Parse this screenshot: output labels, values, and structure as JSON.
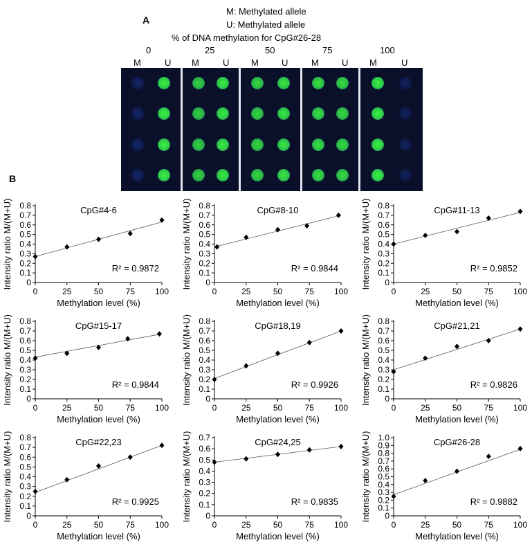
{
  "panel_a": {
    "letter": "A",
    "legend_m": "M: Methylated allele",
    "legend_u": "U: Methylated allele",
    "title": "% of DNA methylation for CpG#26-28",
    "percent_labels": [
      "0",
      "25",
      "50",
      "75",
      "100"
    ],
    "allele_labels": [
      "M",
      "U",
      "M",
      "U",
      "M",
      "U",
      "M",
      "U",
      "M",
      "U"
    ],
    "colors": {
      "background": "#0a0f2a",
      "bright": "#39f03c",
      "dim": "#1a3a9a",
      "separator": "#e6e6f0"
    }
  },
  "panel_b": {
    "letter": "B"
  },
  "chart_data": [
    {
      "type": "scatter",
      "title": "CpG#4-6",
      "xlabel": "Methylation level (%)",
      "ylabel": "Intensity ratio M/(M+U)",
      "x": [
        0,
        25,
        50,
        75,
        100
      ],
      "y": [
        0.27,
        0.37,
        0.45,
        0.51,
        0.65
      ],
      "fit": [
        0.27,
        0.63
      ],
      "r2": "R² = 0.9872",
      "xlim": [
        0,
        100
      ],
      "ylim": [
        0,
        0.8
      ],
      "yticks": [
        "0",
        "0.1",
        "0.2",
        "0.3",
        "0.4",
        "0.5",
        "0.6",
        "0.7",
        "0.8"
      ],
      "xticks": [
        "0",
        "25",
        "50",
        "75",
        "100"
      ]
    },
    {
      "type": "scatter",
      "title": "CpG#8-10",
      "xlabel": "Methylation level (%)",
      "ylabel": "Intensity ratio M/(M+U)",
      "x": [
        2,
        25,
        50,
        73,
        98
      ],
      "y": [
        0.37,
        0.47,
        0.55,
        0.59,
        0.7
      ],
      "fit": [
        0.37,
        0.7
      ],
      "r2": "R² = 0.9844",
      "xlim": [
        0,
        100
      ],
      "ylim": [
        0,
        0.8
      ],
      "yticks": [
        "0",
        "0.1",
        "0.2",
        "0.3",
        "0.4",
        "0.5",
        "0.6",
        "0.7",
        "0.8"
      ],
      "xticks": [
        "0",
        "25",
        "50",
        "75",
        "100"
      ]
    },
    {
      "type": "scatter",
      "title": "CpG#11-13",
      "xlabel": "Methylation level (%)",
      "ylabel": "Intensity ratio M/(M+U)",
      "x": [
        0,
        25,
        50,
        75,
        100
      ],
      "y": [
        0.4,
        0.49,
        0.53,
        0.67,
        0.74
      ],
      "fit": [
        0.4,
        0.73
      ],
      "r2": "R² = 0.9852",
      "xlim": [
        0,
        100
      ],
      "ylim": [
        0,
        0.8
      ],
      "yticks": [
        "0",
        "0.1",
        "0.2",
        "0.3",
        "0.4",
        "0.5",
        "0.6",
        "0.7",
        "0.8"
      ],
      "xticks": [
        "0",
        "25",
        "50",
        "75",
        "100"
      ]
    },
    {
      "type": "scatter",
      "title": "CpG#15-17",
      "xlabel": "Methylation level (%)",
      "ylabel": "Intensity ratio M/(M+U)",
      "x": [
        0,
        25,
        50,
        73,
        98
      ],
      "y": [
        0.42,
        0.47,
        0.53,
        0.62,
        0.67
      ],
      "fit": [
        0.43,
        0.67
      ],
      "r2": "R² = 0.9844",
      "xlim": [
        0,
        100
      ],
      "ylim": [
        0,
        0.8
      ],
      "yticks": [
        "0",
        "0.1",
        "0.2",
        "0.3",
        "0.4",
        "0.5",
        "0.6",
        "0.7",
        "0.8"
      ],
      "xticks": [
        "0",
        "25",
        "50",
        "75",
        "100"
      ]
    },
    {
      "type": "scatter",
      "title": "CpG#18,19",
      "xlabel": "Methylation level (%)",
      "ylabel": "Intensity ratio M/(M+U)",
      "x": [
        0,
        25,
        50,
        75,
        100
      ],
      "y": [
        0.2,
        0.34,
        0.47,
        0.58,
        0.7
      ],
      "fit": [
        0.21,
        0.7
      ],
      "r2": "R² = 0.9926",
      "xlim": [
        0,
        100
      ],
      "ylim": [
        0,
        0.8
      ],
      "yticks": [
        "0",
        "0.1",
        "0.2",
        "0.3",
        "0.4",
        "0.5",
        "0.6",
        "0.7",
        "0.8"
      ],
      "xticks": [
        "0",
        "25",
        "50",
        "75",
        "100"
      ]
    },
    {
      "type": "scatter",
      "title": "CpG#21,21",
      "xlabel": "Methylation level (%)",
      "ylabel": "Intensity ratio M/(M+U)",
      "x": [
        0,
        25,
        50,
        75,
        100
      ],
      "y": [
        0.28,
        0.42,
        0.54,
        0.6,
        0.72
      ],
      "fit": [
        0.3,
        0.72
      ],
      "r2": "R² = 0.9826",
      "xlim": [
        0,
        100
      ],
      "ylim": [
        0,
        0.8
      ],
      "yticks": [
        "0",
        "0.1",
        "0.2",
        "0.3",
        "0.4",
        "0.5",
        "0.6",
        "0.7",
        "0.8"
      ],
      "xticks": [
        "0",
        "25",
        "50",
        "75",
        "100"
      ]
    },
    {
      "type": "scatter",
      "title": "CpG#22,23",
      "xlabel": "Methylation level (%)",
      "ylabel": "Intensity ratio M/(M+U)",
      "x": [
        0,
        25,
        50,
        75,
        100
      ],
      "y": [
        0.25,
        0.37,
        0.51,
        0.6,
        0.72
      ],
      "fit": [
        0.24,
        0.72
      ],
      "r2": "R² = 0.9925",
      "xlim": [
        0,
        100
      ],
      "ylim": [
        0,
        0.8
      ],
      "yticks": [
        "0",
        "0.1",
        "0.2",
        "0.3",
        "0.4",
        "0.5",
        "0.6",
        "0.7",
        "0.8"
      ],
      "xticks": [
        "0",
        "25",
        "50",
        "75",
        "100"
      ]
    },
    {
      "type": "scatter",
      "title": "CpG#24,25",
      "xlabel": "Methylation level (%)",
      "ylabel": "Intensity ratio M/(M+U)",
      "x": [
        0,
        25,
        50,
        75,
        100
      ],
      "y": [
        0.48,
        0.51,
        0.55,
        0.59,
        0.62
      ],
      "fit": [
        0.48,
        0.62
      ],
      "r2": "R² = 0.9835",
      "xlim": [
        0,
        100
      ],
      "ylim": [
        0,
        0.7
      ],
      "yticks": [
        "0",
        "0.1",
        "0.2",
        "0.3",
        "0.4",
        "0.5",
        "0.6",
        "0.7"
      ],
      "xticks": [
        "0",
        "25",
        "50",
        "75",
        "100"
      ]
    },
    {
      "type": "scatter",
      "title": "CpG#26-28",
      "xlabel": "Methylation level (%)",
      "ylabel": "Intensity ratio M/(M+U)",
      "x": [
        0,
        25,
        50,
        75,
        100
      ],
      "y": [
        0.25,
        0.45,
        0.57,
        0.76,
        0.86
      ],
      "fit": [
        0.27,
        0.85
      ],
      "r2": "R² = 0.9882",
      "xlim": [
        0,
        100
      ],
      "ylim": [
        0,
        1.0
      ],
      "yticks": [
        "0",
        "0.1",
        "0.2",
        "0.3",
        "0.4",
        "0.5",
        "0.6",
        "0.7",
        "0.8",
        "0.9",
        "1.0"
      ],
      "xticks": [
        "0",
        "25",
        "50",
        "75",
        "100"
      ]
    }
  ]
}
